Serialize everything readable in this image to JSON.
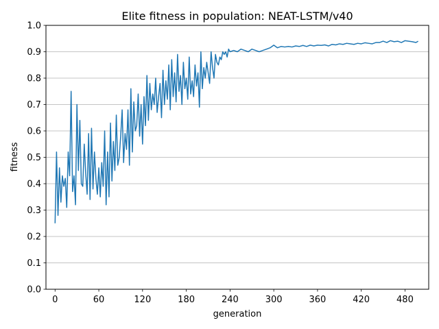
{
  "chart_data": {
    "type": "line",
    "title": "Elite fitness in population: NEAT-LSTM/v40",
    "xlabel": "generation",
    "ylabel": "fitness",
    "xlim": [
      -12.5,
      512.5
    ],
    "ylim": [
      0,
      1
    ],
    "grid": "y-major",
    "x_ticks": [
      0,
      60,
      120,
      180,
      240,
      300,
      360,
      420,
      480
    ],
    "y_ticks": [
      0.0,
      0.1,
      0.2,
      0.3,
      0.4,
      0.5,
      0.6,
      0.7,
      0.8,
      0.9,
      1.0
    ],
    "y_tick_labels": [
      "0.0",
      "0.1",
      "0.2",
      "0.3",
      "0.4",
      "0.5",
      "0.6",
      "0.7",
      "0.8",
      "0.9",
      "1.0"
    ],
    "line_color": "#1f77b4",
    "grid_color": "#b0b0b0",
    "series": [
      {
        "x": [
          0,
          2,
          4,
          6,
          8,
          10,
          12,
          14,
          16,
          18,
          20,
          22,
          24,
          26,
          28,
          30,
          32,
          34,
          36,
          38,
          40,
          42,
          44,
          46,
          48,
          50,
          52,
          54,
          56,
          58,
          60,
          62,
          64,
          66,
          68,
          70,
          72,
          74,
          76,
          78,
          80,
          82,
          84,
          86,
          88,
          90,
          92,
          94,
          96,
          98,
          100,
          102,
          104,
          106,
          108,
          110,
          112,
          114,
          116,
          118,
          120,
          122,
          124,
          126,
          128,
          130,
          132,
          134,
          136,
          138,
          140,
          142,
          144,
          146,
          148,
          150,
          152,
          154,
          156,
          158,
          160,
          162,
          164,
          166,
          168,
          170,
          172,
          174,
          176,
          178,
          180,
          182,
          184,
          186,
          188,
          190,
          192,
          194,
          196,
          198,
          200,
          202,
          204,
          206,
          208,
          210,
          212,
          214,
          216,
          218,
          220,
          222,
          224,
          226,
          228,
          230,
          232,
          234,
          236,
          238,
          240,
          245,
          250,
          255,
          260,
          265,
          270,
          275,
          280,
          285,
          290,
          295,
          300,
          305,
          310,
          315,
          320,
          325,
          330,
          335,
          340,
          345,
          350,
          355,
          360,
          365,
          370,
          375,
          380,
          385,
          390,
          395,
          400,
          405,
          410,
          415,
          420,
          425,
          430,
          435,
          440,
          445,
          450,
          455,
          460,
          465,
          470,
          475,
          480,
          485,
          490,
          495,
          498
        ],
        "y": [
          0.25,
          0.52,
          0.28,
          0.46,
          0.33,
          0.43,
          0.39,
          0.42,
          0.31,
          0.52,
          0.43,
          0.75,
          0.37,
          0.43,
          0.32,
          0.7,
          0.45,
          0.64,
          0.4,
          0.39,
          0.55,
          0.44,
          0.36,
          0.59,
          0.34,
          0.61,
          0.38,
          0.52,
          0.42,
          0.36,
          0.46,
          0.35,
          0.48,
          0.39,
          0.6,
          0.32,
          0.52,
          0.35,
          0.63,
          0.41,
          0.56,
          0.45,
          0.66,
          0.47,
          0.5,
          0.58,
          0.68,
          0.48,
          0.59,
          0.53,
          0.68,
          0.47,
          0.76,
          0.52,
          0.71,
          0.6,
          0.62,
          0.74,
          0.58,
          0.7,
          0.55,
          0.73,
          0.62,
          0.81,
          0.64,
          0.78,
          0.68,
          0.74,
          0.7,
          0.8,
          0.67,
          0.73,
          0.78,
          0.65,
          0.83,
          0.7,
          0.79,
          0.72,
          0.85,
          0.68,
          0.87,
          0.73,
          0.82,
          0.71,
          0.89,
          0.75,
          0.81,
          0.7,
          0.86,
          0.76,
          0.8,
          0.72,
          0.88,
          0.74,
          0.79,
          0.73,
          0.85,
          0.77,
          0.82,
          0.69,
          0.9,
          0.76,
          0.84,
          0.8,
          0.86,
          0.82,
          0.78,
          0.9,
          0.84,
          0.8,
          0.89,
          0.86,
          0.85,
          0.88,
          0.87,
          0.9,
          0.89,
          0.9,
          0.88,
          0.91,
          0.9,
          0.905,
          0.9,
          0.91,
          0.905,
          0.9,
          0.91,
          0.905,
          0.9,
          0.905,
          0.91,
          0.915,
          0.925,
          0.915,
          0.92,
          0.918,
          0.92,
          0.918,
          0.922,
          0.92,
          0.924,
          0.92,
          0.925,
          0.922,
          0.925,
          0.924,
          0.926,
          0.922,
          0.928,
          0.926,
          0.93,
          0.928,
          0.932,
          0.93,
          0.928,
          0.932,
          0.93,
          0.934,
          0.932,
          0.93,
          0.935,
          0.935,
          0.94,
          0.935,
          0.942,
          0.938,
          0.94,
          0.935,
          0.942,
          0.94,
          0.938,
          0.935,
          0.94
        ]
      }
    ]
  }
}
